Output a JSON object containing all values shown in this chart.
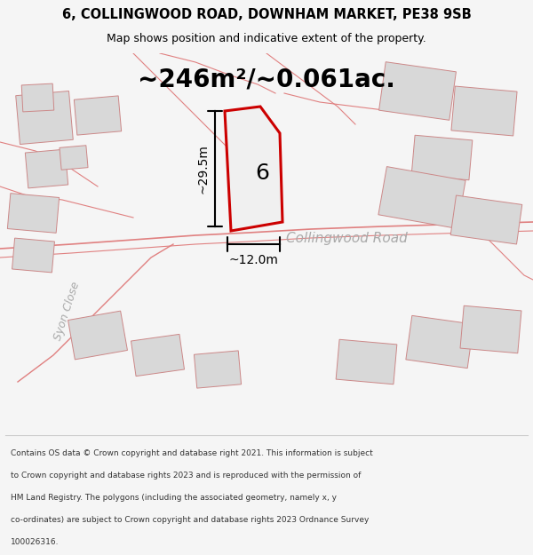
{
  "title_line1": "6, COLLINGWOOD ROAD, DOWNHAM MARKET, PE38 9SB",
  "title_line2": "Map shows position and indicative extent of the property.",
  "area_text": "~246m²/~0.061ac.",
  "label_6": "6",
  "road_label": "Collingwood Road",
  "street_label": "Syon Close",
  "dim_height": "~29.5m",
  "dim_width": "~12.0m",
  "footer_lines": [
    "Contains OS data © Crown copyright and database right 2021. This information is subject",
    "to Crown copyright and database rights 2023 and is reproduced with the permission of",
    "HM Land Registry. The polygons (including the associated geometry, namely x, y",
    "co-ordinates) are subject to Crown copyright and database rights 2023 Ordnance Survey",
    "100026316."
  ],
  "bg_color": "#f5f5f5",
  "map_bg": "#ffffff",
  "plot_outline": "#cc0000",
  "road_line_color": "#e08080",
  "building_fill": "#d8d8d8",
  "building_outline": "#cc8888",
  "dim_line_color": "#000000",
  "text_color": "#000000",
  "road_text_color": "#aaaaaa",
  "street_text_color": "#aaaaaa"
}
